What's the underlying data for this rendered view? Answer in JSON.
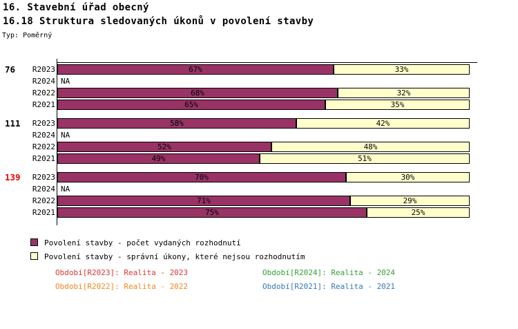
{
  "header": {
    "title": "16. Stavební úřad obecný",
    "subtitle": "16.18 Struktura sledovaných úkonů v povolení stavby",
    "type_label": "Typ: Poměrný"
  },
  "chart_data": {
    "type": "bar",
    "orientation": "horizontal",
    "stacked": true,
    "unit": "%",
    "x_axis": {
      "min": 0,
      "max": 100,
      "unit": "%",
      "gridlines": false
    },
    "na_label": "NA",
    "series_names": [
      "Povolení stavby - počet vydaných rozhodnutí",
      "Povolení stavby - správní úkony, které nejsou rozhodnutím"
    ],
    "colors": [
      "#993366",
      "#FFFFCC"
    ],
    "value_label_color": "#000000",
    "groups": [
      {
        "label": "76",
        "label_color": "#000000",
        "rows": [
          {
            "period": "R2023",
            "values": [
              67,
              33
            ]
          },
          {
            "period": "R2024",
            "values": null
          },
          {
            "period": "R2022",
            "values": [
              68,
              32
            ]
          },
          {
            "period": "R2021",
            "values": [
              65,
              35
            ]
          }
        ]
      },
      {
        "label": "111",
        "label_color": "#000000",
        "rows": [
          {
            "period": "R2023",
            "values": [
              58,
              42
            ]
          },
          {
            "period": "R2024",
            "values": null
          },
          {
            "period": "R2022",
            "values": [
              52,
              48
            ]
          },
          {
            "period": "R2021",
            "values": [
              49,
              51
            ]
          }
        ]
      },
      {
        "label": "139",
        "label_color": "#EE0000",
        "rows": [
          {
            "period": "R2023",
            "values": [
              70,
              30
            ]
          },
          {
            "period": "R2024",
            "values": null
          },
          {
            "period": "R2022",
            "values": [
              71,
              29
            ]
          },
          {
            "period": "R2021",
            "values": [
              75,
              25
            ]
          }
        ]
      }
    ]
  },
  "legend": {
    "items": [
      {
        "label": "Povolení stavby - počet vydaných rozhodnutí",
        "color": "#993366"
      },
      {
        "label": "Povolení stavby - správní úkony, které nejsou rozhodnutím",
        "color": "#FFFFCC"
      }
    ]
  },
  "periods_legend": [
    {
      "label": "Období[R2023]: Realita - 2023",
      "color": "#DD3333"
    },
    {
      "label": "Období[R2024]: Realita - 2024",
      "color": "#33A033"
    },
    {
      "label": "Období[R2022]: Realita - 2022",
      "color": "#EE8822"
    },
    {
      "label": "Období[R2021]: Realita - 2021",
      "color": "#3377BB"
    }
  ]
}
